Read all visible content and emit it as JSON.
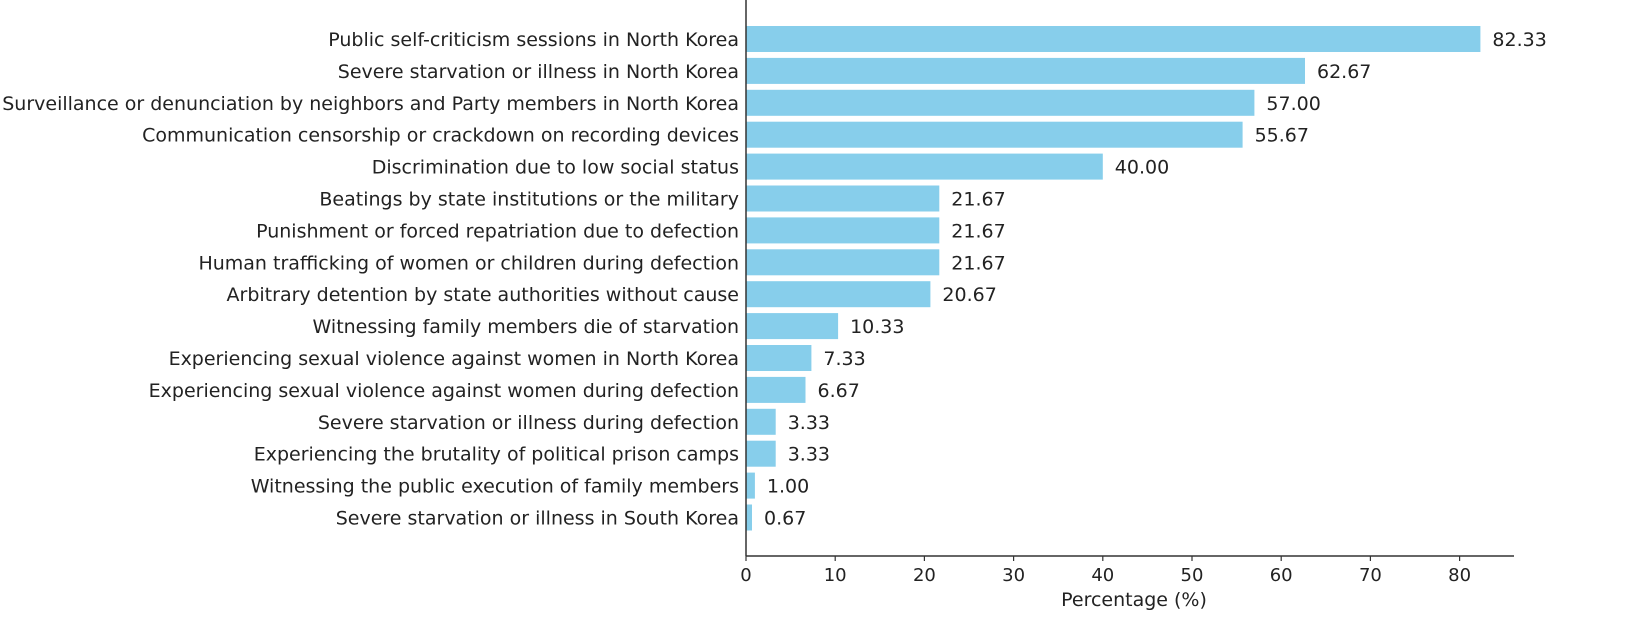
{
  "chart_data": {
    "type": "bar",
    "orientation": "horizontal",
    "categories": [
      "Public self-criticism sessions in North Korea",
      "Severe starvation or illness in North Korea",
      "Surveillance or denunciation by neighbors and Party members in North Korea",
      "Communication censorship or crackdown on recording devices",
      "Discrimination due to low social status",
      "Beatings by state institutions or the military",
      "Punishment or forced repatriation due to defection",
      "Human trafficking of women or children during defection",
      "Arbitrary detention by state authorities without cause",
      "Witnessing family members die of starvation",
      "Experiencing sexual violence against women in North Korea",
      "Experiencing sexual violence against women during defection",
      "Severe starvation or illness during defection",
      "Experiencing the brutality of political prison camps",
      "Witnessing the public execution of family members",
      "Severe starvation or illness in South Korea"
    ],
    "values": [
      82.33,
      62.67,
      57.0,
      55.67,
      40.0,
      21.67,
      21.67,
      21.67,
      20.67,
      10.33,
      7.33,
      6.67,
      3.33,
      3.33,
      1.0,
      0.67
    ],
    "value_labels": [
      "82.33",
      "62.67",
      "57.00",
      "55.67",
      "40.00",
      "21.67",
      "21.67",
      "21.67",
      "20.67",
      "10.33",
      "7.33",
      "6.67",
      "3.33",
      "3.33",
      "1.00",
      "0.67"
    ],
    "title": "",
    "xlabel": "Percentage (%)",
    "ylabel": "",
    "xlim": [
      0,
      87
    ],
    "xticks": [
      0,
      10,
      20,
      30,
      40,
      50,
      60,
      70,
      80
    ],
    "grid": false,
    "legend": "none",
    "bar_color": "#87CEEB",
    "axis_color": "#333333",
    "text_color": "#222222"
  }
}
